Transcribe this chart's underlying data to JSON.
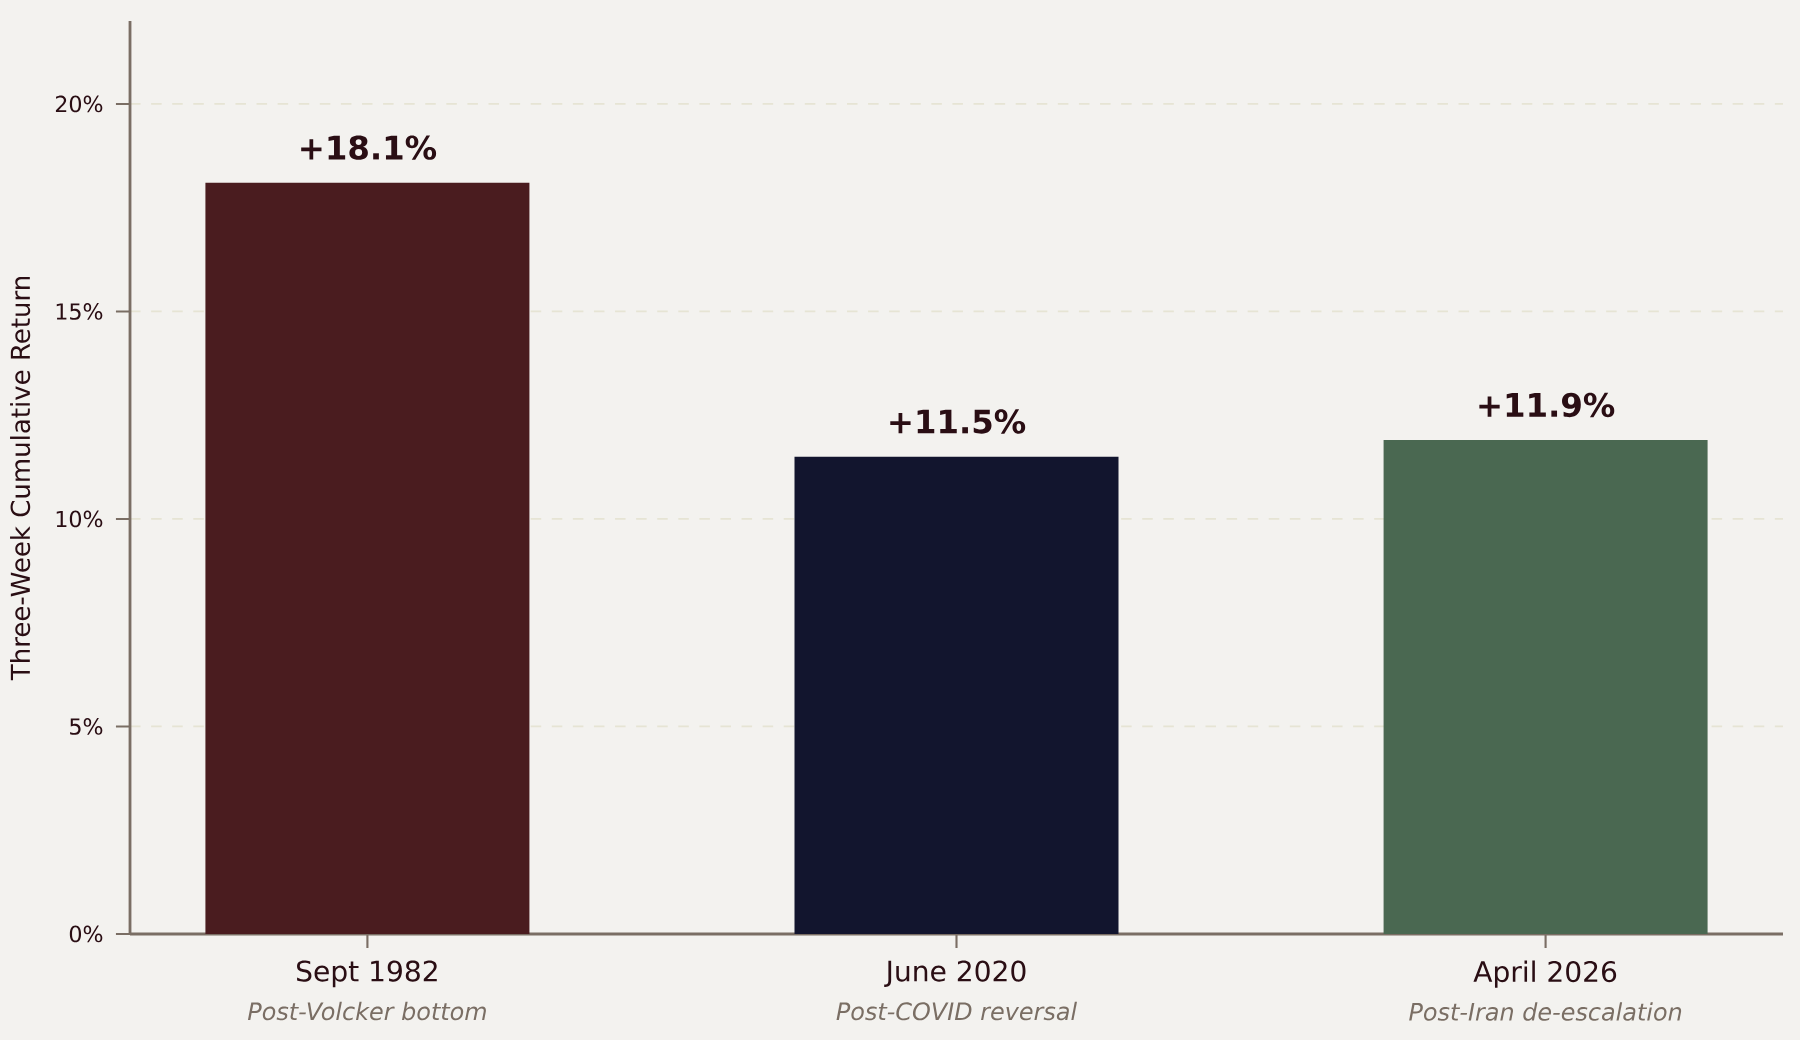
{
  "chart_data": {
    "type": "bar",
    "ylabel": "Three-Week Cumulative Return",
    "categories": [
      "Sept 1982",
      "June 2020",
      "April 2026"
    ],
    "values": [
      18.1,
      11.5,
      11.9
    ],
    "colors": [
      "#4a1c1f",
      "#12152e",
      "#4a6851"
    ],
    "value_labels": [
      "+18.1%",
      "+11.5%",
      "+11.9%"
    ],
    "annotations": [
      "Post-Volcker bottom",
      "Post-COVID reversal",
      "Post-Iran de-escalation"
    ],
    "ylim": [
      0,
      22
    ],
    "yticks": [
      {
        "value": 0,
        "label": "0%"
      },
      {
        "value": 5,
        "label": "5%"
      },
      {
        "value": 10,
        "label": "10%"
      },
      {
        "value": 15,
        "label": "15%"
      },
      {
        "value": 20,
        "label": "20%"
      }
    ],
    "grid": "y"
  }
}
